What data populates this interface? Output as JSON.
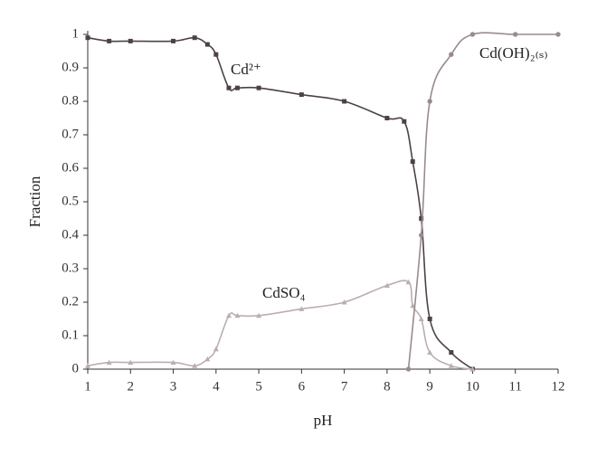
{
  "chart_data": {
    "type": "line",
    "x_label": "pH",
    "y_label": "Fraction",
    "xlim": [
      1,
      12
    ],
    "xticks": [
      1,
      2,
      3,
      4,
      5,
      6,
      7,
      8,
      9,
      10,
      11,
      12
    ],
    "ylim": [
      0,
      1
    ],
    "yticks": [
      0,
      0.1,
      0.2,
      0.3,
      0.4,
      0.5,
      0.6,
      0.7,
      0.8,
      0.9,
      1
    ],
    "grid": false,
    "series": [
      {
        "name": "Cd²⁺",
        "color": "#4d4242",
        "marker": "square",
        "x": [
          1,
          1.5,
          2,
          3,
          3.5,
          3.8,
          4,
          4.3,
          4.5,
          5,
          6,
          7,
          8,
          8.4,
          8.6,
          8.8,
          9,
          9.5,
          10
        ],
        "values": [
          0.99,
          0.98,
          0.98,
          0.98,
          0.99,
          0.97,
          0.94,
          0.84,
          0.84,
          0.84,
          0.82,
          0.8,
          0.75,
          0.74,
          0.62,
          0.45,
          0.15,
          0.05,
          0
        ]
      },
      {
        "name": "CdSO₄",
        "color": "#bcaeae",
        "marker": "triangle",
        "x": [
          1,
          1.5,
          2,
          3,
          3.5,
          3.8,
          4,
          4.3,
          4.5,
          5,
          6,
          7,
          8,
          8.5,
          8.6,
          8.8,
          9,
          9.5,
          10
        ],
        "values": [
          0.01,
          0.02,
          0.02,
          0.02,
          0.01,
          0.03,
          0.06,
          0.16,
          0.16,
          0.16,
          0.18,
          0.2,
          0.25,
          0.26,
          0.19,
          0.15,
          0.05,
          0.01,
          0
        ]
      },
      {
        "name": "Cd(OH)₂₍ₛ₎",
        "color": "#9a8b8b",
        "marker": "circle",
        "x": [
          8.5,
          8.8,
          9,
          9.5,
          10,
          11,
          12
        ],
        "values": [
          0,
          0.4,
          0.8,
          0.94,
          1.0,
          1.0,
          1.0
        ]
      }
    ]
  }
}
